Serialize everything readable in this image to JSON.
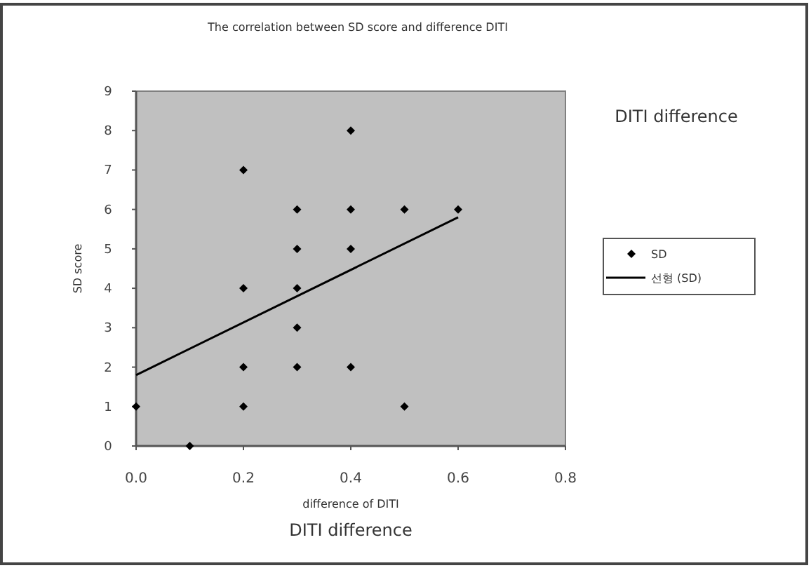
{
  "chart_data": {
    "type": "scatter",
    "title": "The correlation between SD score and difference DITI",
    "xlabel": "difference of DITI",
    "ylabel": "SD score",
    "annotations": [
      "DITI  difference",
      "DITI difference"
    ],
    "xlim": [
      0,
      0.8
    ],
    "xticks": [
      {
        "value": 0,
        "label": "0.0"
      },
      {
        "value": 0.2,
        "label": "0.2"
      },
      {
        "value": 0.4,
        "label": "0.4"
      },
      {
        "value": 0.6,
        "label": "0.6"
      },
      {
        "value": 0.8,
        "label": "0.8"
      }
    ],
    "ylim": [
      0,
      9
    ],
    "yticks": [
      0,
      1,
      2,
      3,
      4,
      5,
      6,
      7,
      8,
      9
    ],
    "legend": "right",
    "grid": false,
    "series": [
      {
        "name": "SD",
        "type": "scatter",
        "marker": "diamond",
        "color": "#000000",
        "x": [
          0,
          0.1,
          0.2,
          0.2,
          0.2,
          0.2,
          0.3,
          0.3,
          0.3,
          0.3,
          0.3,
          0.4,
          0.4,
          0.4,
          0.4,
          0.5,
          0.5,
          0.6
        ],
        "values": [
          1,
          0,
          7,
          4,
          2,
          1,
          6,
          5,
          4,
          3,
          2,
          8,
          6,
          5,
          2,
          6,
          1,
          6
        ]
      },
      {
        "name": "선형 (SD)",
        "type": "line",
        "marker": "none",
        "color": "#000000",
        "x": [
          0,
          0.6
        ],
        "values": [
          1.8,
          5.8
        ]
      }
    ]
  }
}
